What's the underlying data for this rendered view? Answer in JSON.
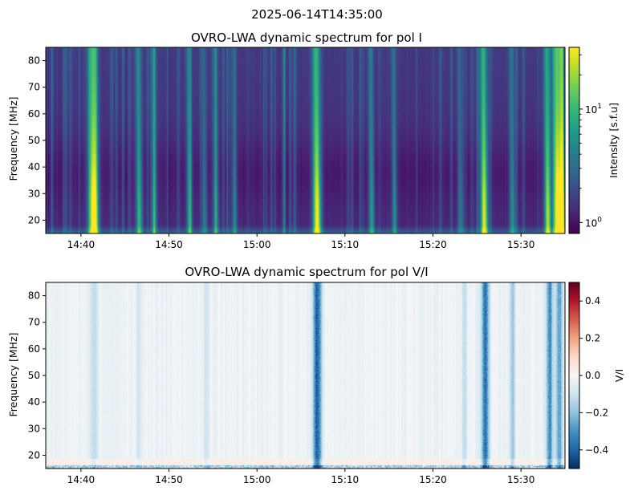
{
  "figure_title": "2025-06-14T14:35:00",
  "chart_data": [
    {
      "type": "heatmap",
      "title": "OVRO-LWA dynamic spectrum for pol I",
      "xlabel": "",
      "ylabel": "Frequency [MHz]",
      "x_ticks": [
        "14:40",
        "14:50",
        "15:00",
        "15:10",
        "15:20",
        "15:30"
      ],
      "x_tick_minutes": [
        40,
        50,
        60,
        70,
        80,
        90
      ],
      "xlim_minutes": [
        36,
        95
      ],
      "ylim": [
        15,
        85
      ],
      "y_ticks": [
        20,
        30,
        40,
        50,
        60,
        70,
        80
      ],
      "colormap": "viridis",
      "color_scale": "log",
      "colorbar": {
        "label": "Intensity [s.f.u]",
        "range": [
          0.8,
          35
        ],
        "major_ticks": [
          {
            "value": 1,
            "base": "10",
            "exp": "0"
          },
          {
            "value": 10,
            "base": "10",
            "exp": "1"
          }
        ],
        "minor_ticks": [
          2,
          3,
          4,
          5,
          6,
          7,
          8,
          9,
          20,
          30
        ]
      },
      "bursts_minutes": [
        {
          "t": 41.4,
          "w": 0.45,
          "amp": 1.0
        },
        {
          "t": 46.6,
          "w": 0.25,
          "amp": 0.55
        },
        {
          "t": 48.3,
          "w": 0.2,
          "amp": 0.35
        },
        {
          "t": 52.3,
          "w": 0.2,
          "amp": 0.45
        },
        {
          "t": 54.0,
          "w": 0.2,
          "amp": 0.3
        },
        {
          "t": 55.3,
          "w": 0.2,
          "amp": 0.4
        },
        {
          "t": 57.4,
          "w": 0.2,
          "amp": 0.3
        },
        {
          "t": 66.8,
          "w": 0.35,
          "amp": 0.9
        },
        {
          "t": 73.0,
          "w": 0.2,
          "amp": 0.45
        },
        {
          "t": 75.6,
          "w": 0.15,
          "amp": 0.4
        },
        {
          "t": 83.1,
          "w": 0.2,
          "amp": 0.3
        },
        {
          "t": 85.8,
          "w": 0.3,
          "amp": 0.85
        },
        {
          "t": 89.0,
          "w": 0.2,
          "amp": 0.4
        },
        {
          "t": 93.0,
          "w": 0.25,
          "amp": 0.75
        },
        {
          "t": 94.1,
          "w": 0.35,
          "amp": 1.0
        },
        {
          "t": 94.7,
          "w": 0.2,
          "amp": 0.9
        }
      ]
    },
    {
      "type": "heatmap",
      "title": "OVRO-LWA dynamic spectrum for pol V/I",
      "xlabel": "",
      "ylabel": "Frequency [MHz]",
      "x_ticks": [
        "14:40",
        "14:50",
        "15:00",
        "15:10",
        "15:20",
        "15:30"
      ],
      "x_tick_minutes": [
        40,
        50,
        60,
        70,
        80,
        90
      ],
      "xlim_minutes": [
        36,
        95
      ],
      "ylim": [
        15,
        85
      ],
      "y_ticks": [
        20,
        30,
        40,
        50,
        60,
        70,
        80
      ],
      "colormap": "RdBu_r",
      "color_scale": "linear",
      "colorbar": {
        "label": "V/I",
        "range": [
          -0.5,
          0.5
        ],
        "ticks": [
          0.4,
          0.2,
          0.0,
          -0.2,
          -0.4
        ],
        "tick_labels": [
          "0.4",
          "0.2",
          "0.0",
          "−0.2",
          "−0.4"
        ]
      },
      "bursts_minutes": [
        {
          "t": 66.8,
          "w": 0.4,
          "v": -0.45
        },
        {
          "t": 85.9,
          "w": 0.35,
          "v": -0.4
        },
        {
          "t": 93.2,
          "w": 0.3,
          "v": -0.35
        },
        {
          "t": 94.3,
          "w": 0.3,
          "v": -0.3
        },
        {
          "t": 41.4,
          "w": 0.35,
          "v": -0.12
        },
        {
          "t": 89.0,
          "w": 0.2,
          "v": -0.2
        },
        {
          "t": 83.5,
          "w": 0.2,
          "v": -0.12
        },
        {
          "t": 46.6,
          "w": 0.25,
          "v": -0.08
        },
        {
          "t": 54.2,
          "w": 0.2,
          "v": -0.1
        }
      ]
    }
  ]
}
